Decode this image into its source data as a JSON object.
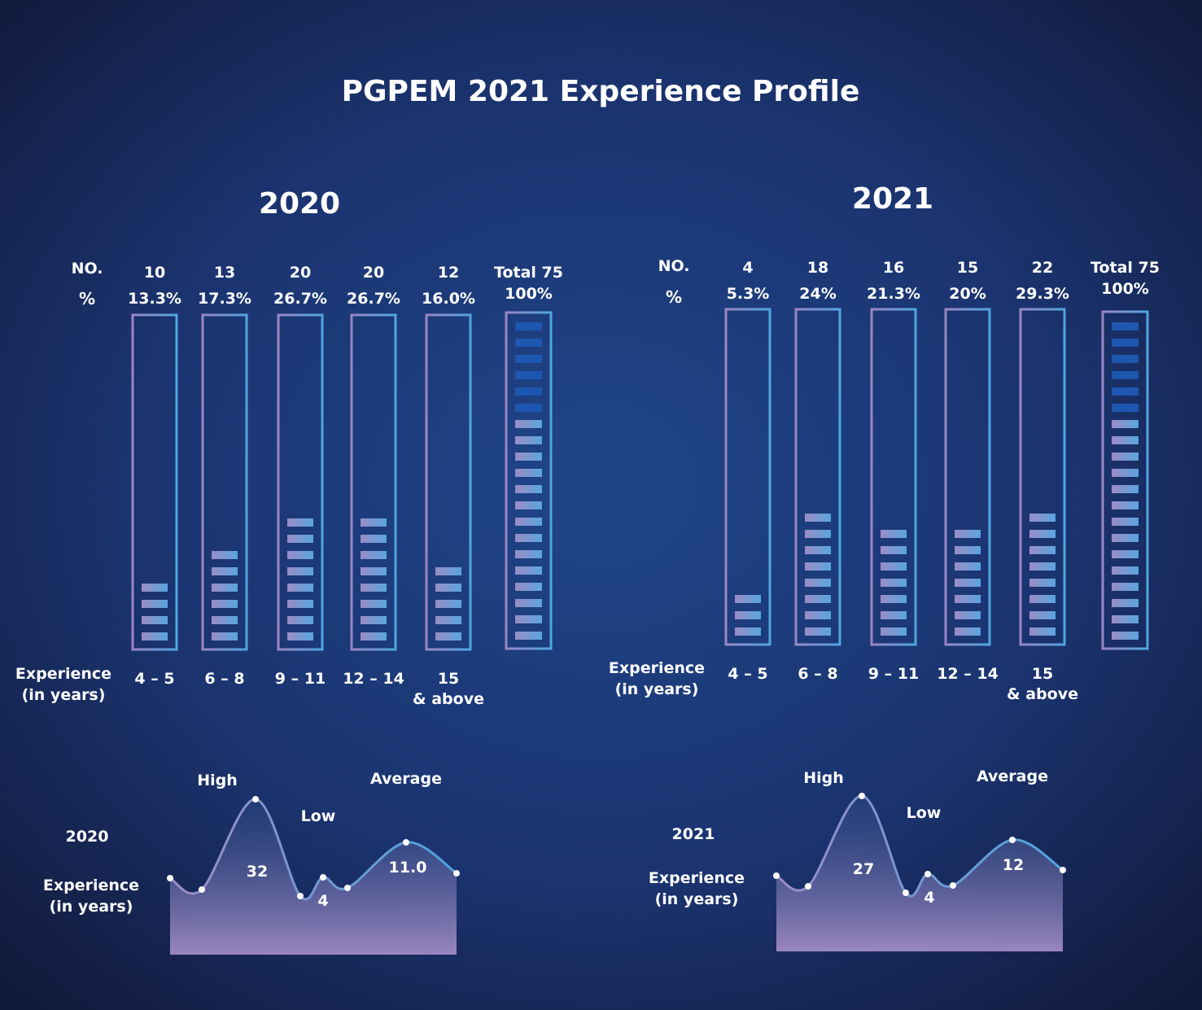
{
  "title": "PGPEM 2021 Experience Profile",
  "colors": {
    "bar_outline_left": "#9b86c4",
    "bar_outline_right": "#4fa6e0",
    "segment_light": "#8fa2d6",
    "segment_dark": "#1d57b0",
    "curve_left": "#9c8dc6",
    "curve_right": "#4ea4dc"
  },
  "panels": [
    {
      "year": "2020",
      "no_label": "NO.",
      "pct_label": "%",
      "experience_label": [
        "Experience",
        "(in years)"
      ],
      "categories": [
        {
          "range": [
            "4 – 5"
          ],
          "count": "10",
          "percent": "13.3%",
          "filled_segments": 4
        },
        {
          "range": [
            "6 – 8"
          ],
          "count": "13",
          "percent": "17.3%",
          "filled_segments": 6
        },
        {
          "range": [
            "9 – 11"
          ],
          "count": "20",
          "percent": "26.7%",
          "filled_segments": 8
        },
        {
          "range": [
            "12 – 14"
          ],
          "count": "20",
          "percent": "26.7%",
          "filled_segments": 8
        },
        {
          "range": [
            "15",
            "& above"
          ],
          "count": "12",
          "percent": "16.0%",
          "filled_segments": 5
        }
      ],
      "total": {
        "label": "Total 75",
        "percent": "100%",
        "segments": 20,
        "dark_segments": 6
      },
      "summary": {
        "year": "2020",
        "experience_label": [
          "Experience",
          "(in years)"
        ],
        "high_label": "High",
        "high_value": "32",
        "low_label": "Low",
        "low_value": "4",
        "average_label": "Average",
        "average_value": "11.0"
      }
    },
    {
      "year": "2021",
      "no_label": "NO.",
      "pct_label": "%",
      "experience_label": [
        "Experience",
        "(in years)"
      ],
      "categories": [
        {
          "range": [
            "4 – 5"
          ],
          "count": "4",
          "percent": "5.3%",
          "filled_segments": 3
        },
        {
          "range": [
            "6 – 8"
          ],
          "count": "18",
          "percent": "24%",
          "filled_segments": 8
        },
        {
          "range": [
            "9 – 11"
          ],
          "count": "16",
          "percent": "21.3%",
          "filled_segments": 7
        },
        {
          "range": [
            "12 – 14"
          ],
          "count": "15",
          "percent": "20%",
          "filled_segments": 7
        },
        {
          "range": [
            "15",
            "& above"
          ],
          "count": "22",
          "percent": "29.3%",
          "filled_segments": 8
        }
      ],
      "total": {
        "label": "Total 75",
        "percent": "100%",
        "segments": 20,
        "dark_segments": 6
      },
      "summary": {
        "year": "2021",
        "experience_label": [
          "Experience",
          "(in years)"
        ],
        "high_label": "High",
        "high_value": "27",
        "low_label": "Low",
        "low_value": "4",
        "average_label": "Average",
        "average_value": "12"
      }
    }
  ],
  "chart_data": [
    {
      "type": "bar",
      "title": "2020",
      "categories": [
        "4 – 5",
        "6 – 8",
        "9 – 11",
        "12 – 14",
        "15 & above"
      ],
      "values": [
        10,
        13,
        20,
        20,
        12
      ],
      "percent": [
        13.3,
        17.3,
        26.7,
        26.7,
        16.0
      ],
      "total": 75
    },
    {
      "type": "bar",
      "title": "2021",
      "categories": [
        "4 – 5",
        "6 – 8",
        "9 – 11",
        "12 – 14",
        "15 & above"
      ],
      "values": [
        4,
        18,
        16,
        15,
        22
      ],
      "percent": [
        5.3,
        24,
        21.3,
        20,
        29.3
      ],
      "total": 75
    },
    {
      "type": "area",
      "title": "2020",
      "labels": {
        "High": 32,
        "Low": 4,
        "Average": 11.0
      }
    },
    {
      "type": "area",
      "title": "2021",
      "labels": {
        "High": 27,
        "Low": 4,
        "Average": 12
      }
    }
  ]
}
